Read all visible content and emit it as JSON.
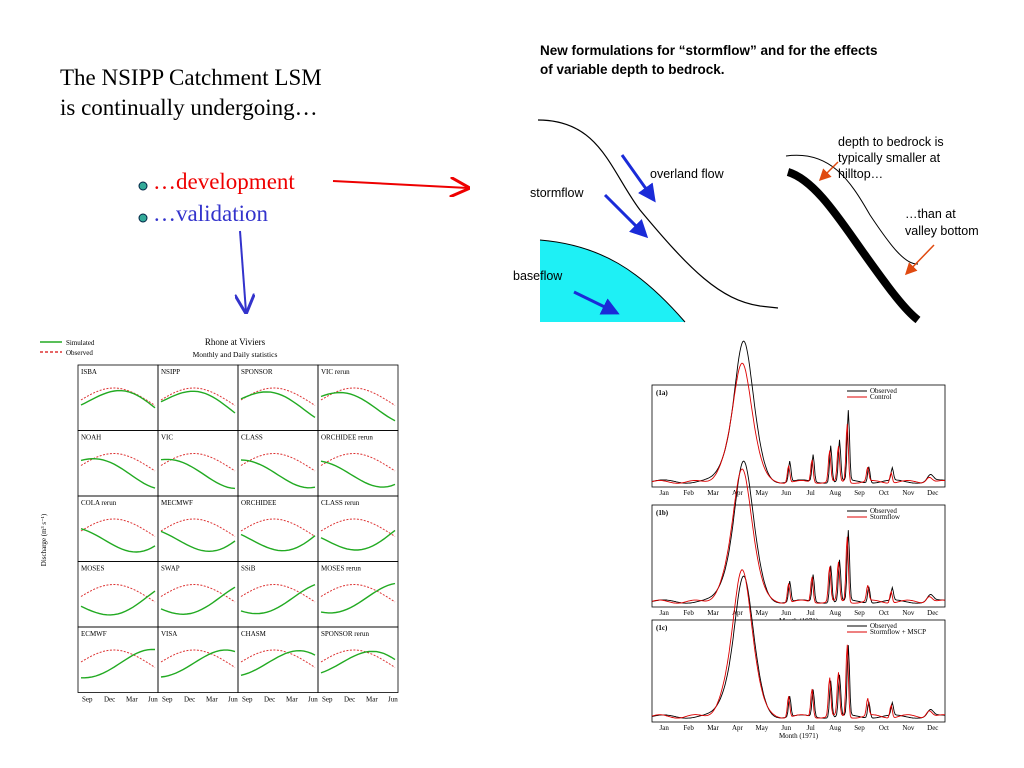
{
  "slide": {
    "title_lines": [
      "The NSIPP Catchment LSM",
      "is continually undergoing…"
    ],
    "bullets": [
      "…development",
      "…validation"
    ]
  },
  "diagram": {
    "title_lines": [
      "New formulations for “stormflow” and for the effects",
      "of variable depth to bedrock."
    ],
    "overland": "overland flow",
    "stormflow": "stormflow",
    "baseflow": "baseflow",
    "depth_lines": [
      "depth to bedrock is",
      "typically smaller at",
      "hilltop…"
    ],
    "valley_lines": [
      "…than at",
      "valley bottom"
    ]
  },
  "rhone_figure": {
    "title": "Rhone at Viviers",
    "subtitle": "Monthly and Daily statistics",
    "legend": [
      "Simulated",
      "Observed"
    ],
    "y_label": "Discharge (m³ s⁻¹)",
    "x_ticks": [
      "Sep",
      "Dec",
      "Mar",
      "Jun"
    ],
    "panels": [
      "ISBA",
      "NSIPP",
      "SPONSOR",
      "VIC rerun",
      "NOAH",
      "VIC",
      "CLASS",
      "ORCHIDEE rerun",
      "COLA rerun",
      "MECMWF",
      "ORCHIDEE",
      "CLASS rerun",
      "MOSES",
      "SWAP",
      "SSiB",
      "MOSES rerun",
      "ECMWF",
      "VISA",
      "CHASM",
      "SPONSOR rerun"
    ]
  },
  "hydrographs": {
    "x_label": "Month (1971)",
    "months": [
      "Jan",
      "Feb",
      "Mar",
      "Apr",
      "May",
      "Jun",
      "Jul",
      "Aug",
      "Sep",
      "Oct",
      "Nov",
      "Dec"
    ],
    "panels": [
      {
        "label": "(1a)",
        "legend": [
          "Observed",
          "Control"
        ]
      },
      {
        "label": "(1b)",
        "legend": [
          "Observed",
          "Stormflow"
        ]
      },
      {
        "label": "(1c)",
        "legend": [
          "Observed",
          "Stormflow + MSCP"
        ]
      }
    ]
  }
}
